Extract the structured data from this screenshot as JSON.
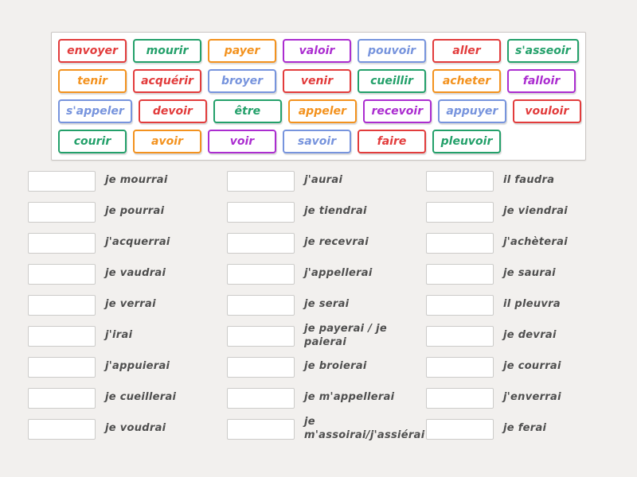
{
  "colors": {
    "red": "#e23c3c",
    "green": "#23a06a",
    "orange": "#f3921e",
    "purple": "#ab2dd0",
    "blue": "#7794dd",
    "background": "#f2f0ee",
    "board_border": "#c9c5c2",
    "slot_border": "#cccbc9",
    "answer_text": "#4f4f4f"
  },
  "tiles": {
    "rows": [
      [
        {
          "label": "envoyer",
          "color": "red"
        },
        {
          "label": "mourir",
          "color": "green"
        },
        {
          "label": "payer",
          "color": "orange"
        },
        {
          "label": "valoir",
          "color": "purple"
        },
        {
          "label": "pouvoir",
          "color": "blue"
        },
        {
          "label": "aller",
          "color": "red"
        },
        {
          "label": "s'asseoir",
          "color": "green"
        }
      ],
      [
        {
          "label": "tenir",
          "color": "orange"
        },
        {
          "label": "acquérir",
          "color": "red"
        },
        {
          "label": "broyer",
          "color": "blue"
        },
        {
          "label": "venir",
          "color": "red"
        },
        {
          "label": "cueillir",
          "color": "green"
        },
        {
          "label": "acheter",
          "color": "orange"
        },
        {
          "label": "falloir",
          "color": "purple"
        }
      ],
      [
        {
          "label": "s'appeler",
          "color": "blue"
        },
        {
          "label": "devoir",
          "color": "red"
        },
        {
          "label": "être",
          "color": "green"
        },
        {
          "label": "appeler",
          "color": "orange"
        },
        {
          "label": "recevoir",
          "color": "purple"
        },
        {
          "label": "appuyer",
          "color": "blue"
        },
        {
          "label": "vouloir",
          "color": "red"
        }
      ],
      [
        {
          "label": "courir",
          "color": "green"
        },
        {
          "label": "avoir",
          "color": "orange"
        },
        {
          "label": "voir",
          "color": "purple"
        },
        {
          "label": "savoir",
          "color": "blue"
        },
        {
          "label": "faire",
          "color": "red"
        },
        {
          "label": "pleuvoir",
          "color": "green"
        }
      ]
    ]
  },
  "answers": {
    "columns": [
      [
        "je mourrai",
        "je pourrai",
        "j'acquerrai",
        "je vaudrai",
        "je verrai",
        "j'irai",
        "j'appuierai",
        "je cueillerai",
        "je voudrai"
      ],
      [
        "j'aurai",
        "je tiendrai",
        "je recevrai",
        "j'appellerai",
        "je serai",
        "je payerai / je paierai",
        "je broierai",
        "je m'appellerai",
        "je m'assoirai/j'assiérai"
      ],
      [
        "il faudra",
        "je viendrai",
        "j'achèterai",
        "je saurai",
        "il pleuvra",
        "je devrai",
        "je courrai",
        "j'enverrai",
        "je ferai"
      ]
    ]
  }
}
